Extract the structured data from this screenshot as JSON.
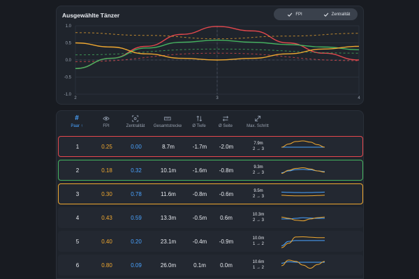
{
  "colors": {
    "red": "#e5484d",
    "green": "#46b560",
    "orange": "#f0a830",
    "blue": "#4aa3ff"
  },
  "chart": {
    "title": "Ausgewählte Tänzer",
    "toggles": [
      {
        "label": "FPI",
        "icon": "check-icon"
      },
      {
        "label": "Zentralität",
        "icon": "check-icon"
      }
    ]
  },
  "chart_data": {
    "type": "line",
    "title": "Ausgewählte Tänzer",
    "xlim": [
      2,
      4
    ],
    "ylim": [
      -1.0,
      1.0
    ],
    "x_ticks": [
      "2",
      "3",
      "4"
    ],
    "y_ticks": [
      "1.0",
      "0.5",
      "0.0",
      "-0.5",
      "-1.0"
    ],
    "grid": true,
    "series": [
      {
        "color": "#e5484d",
        "style": "solid",
        "points": [
          [
            2,
            -0.25
          ],
          [
            2.25,
            0.05
          ],
          [
            2.5,
            0.4
          ],
          [
            2.75,
            0.75
          ],
          [
            3,
            0.98
          ],
          [
            3.25,
            0.85
          ],
          [
            3.5,
            0.5
          ],
          [
            3.75,
            0.2
          ],
          [
            4,
            0.0
          ]
        ]
      },
      {
        "color": "#e5484d",
        "style": "dashed",
        "points": [
          [
            2,
            -0.05
          ],
          [
            3,
            0.2
          ],
          [
            4,
            -0.02
          ]
        ]
      },
      {
        "color": "#46b560",
        "style": "solid",
        "points": [
          [
            2,
            -0.25
          ],
          [
            2.25,
            0.05
          ],
          [
            2.5,
            0.35
          ],
          [
            2.75,
            0.52
          ],
          [
            3,
            0.58
          ],
          [
            3.25,
            0.52
          ],
          [
            3.5,
            0.45
          ],
          [
            3.75,
            0.38
          ],
          [
            4,
            0.3
          ]
        ]
      },
      {
        "color": "#46b560",
        "style": "dashed",
        "points": [
          [
            2,
            0.15
          ],
          [
            3,
            0.32
          ],
          [
            4,
            0.2
          ]
        ]
      },
      {
        "color": "#f0a830",
        "style": "solid",
        "points": [
          [
            2,
            0.5
          ],
          [
            2.25,
            0.38
          ],
          [
            2.5,
            0.18
          ],
          [
            2.75,
            0.05
          ],
          [
            3,
            0.0
          ],
          [
            3.25,
            0.05
          ],
          [
            3.5,
            0.18
          ],
          [
            3.75,
            0.32
          ],
          [
            4,
            0.4
          ]
        ]
      },
      {
        "color": "#f0a830",
        "style": "dashed",
        "points": [
          [
            2,
            0.8
          ],
          [
            2.5,
            0.72
          ],
          [
            3,
            0.62
          ],
          [
            3.5,
            0.7
          ],
          [
            4,
            0.78
          ]
        ]
      }
    ]
  },
  "table": {
    "headers": [
      {
        "label": "Paar ↑",
        "icon": "hash-icon",
        "active": true
      },
      {
        "label": "FPI",
        "icon": "eye-icon"
      },
      {
        "label": "Zentralität",
        "icon": "focus-icon"
      },
      {
        "label": "Gesamtstrecke",
        "icon": "ruler-icon"
      },
      {
        "label": "Ø Tiefe",
        "icon": "vertical-arrows-icon"
      },
      {
        "label": "Ø Seite",
        "icon": "horizontal-arrows-icon"
      },
      {
        "label": "Max. Schritt",
        "icon": "diagonal-arrows-icon"
      }
    ],
    "rows": [
      {
        "pair": "1",
        "fpi": "0.25",
        "zentralitaet": "0.00",
        "strecke": "8.7m",
        "tiefe": "-1.7m",
        "seite": "-2.0m",
        "schritt": "7.9m",
        "schritt_range": "2 → 3",
        "border": "#e5484d",
        "spark_orange": [
          0.5,
          0.75,
          0.95,
          1.0,
          0.9,
          0.7,
          0.5
        ],
        "spark_blue": [
          0.5,
          0.5,
          0.5,
          0.5,
          0.5,
          0.5,
          0.5
        ]
      },
      {
        "pair": "2",
        "fpi": "0.18",
        "zentralitaet": "0.32",
        "strecke": "10.1m",
        "tiefe": "-1.6m",
        "seite": "-0.8m",
        "schritt": "9.3m",
        "schritt_range": "2 → 3",
        "border": "#46b560",
        "spark_orange": [
          0.3,
          0.55,
          0.7,
          0.75,
          0.65,
          0.5,
          0.4
        ],
        "spark_blue": [
          0.35,
          0.5,
          0.6,
          0.62,
          0.58,
          0.5,
          0.45
        ]
      },
      {
        "pair": "3",
        "fpi": "0.30",
        "zentralitaet": "0.78",
        "strecke": "11.6m",
        "tiefe": "-0.8m",
        "seite": "-0.6m",
        "schritt": "9.5m",
        "schritt_range": "2 → 3",
        "border": "#f0a830",
        "spark_orange": [
          0.45,
          0.42,
          0.4,
          0.4,
          0.41,
          0.43,
          0.45
        ],
        "spark_blue": [
          0.7,
          0.68,
          0.67,
          0.66,
          0.67,
          0.68,
          0.7
        ]
      },
      {
        "pair": "4",
        "fpi": "0.43",
        "zentralitaet": "0.59",
        "strecke": "13.3m",
        "tiefe": "-0.5m",
        "seite": "0.6m",
        "schritt": "10.3m",
        "schritt_range": "2 → 3",
        "border": "",
        "spark_orange": [
          0.6,
          0.5,
          0.35,
          0.3,
          0.45,
          0.55,
          0.6
        ],
        "spark_blue": [
          0.45,
          0.45,
          0.5,
          0.55,
          0.52,
          0.5,
          0.5
        ]
      },
      {
        "pair": "5",
        "fpi": "0.40",
        "zentralitaet": "0.20",
        "strecke": "23.1m",
        "tiefe": "-0.4m",
        "seite": "-0.9m",
        "schritt": "10.0m",
        "schritt_range": "1 → 2",
        "border": "",
        "spark_orange": [
          0.05,
          0.4,
          0.9,
          0.92,
          0.88,
          0.85,
          0.85
        ],
        "spark_blue": [
          0.2,
          0.55,
          0.62,
          0.62,
          0.62,
          0.62,
          0.62
        ]
      },
      {
        "pair": "6",
        "fpi": "0.80",
        "zentralitaet": "0.09",
        "strecke": "26.0m",
        "tiefe": "0.1m",
        "seite": "0.0m",
        "schritt": "10.6m",
        "schritt_range": "1 → 2",
        "border": "",
        "spark_orange": [
          0.5,
          0.95,
          0.85,
          0.55,
          0.3,
          0.6,
          0.85
        ],
        "spark_blue": [
          0.7,
          0.82,
          0.78,
          0.78,
          0.78,
          0.78,
          0.78
        ]
      }
    ]
  }
}
